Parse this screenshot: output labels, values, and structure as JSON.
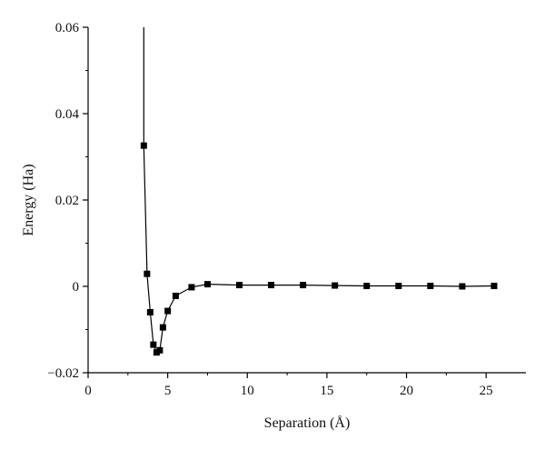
{
  "chart_data": {
    "type": "line",
    "title": "",
    "xlabel": "Separation (Å)",
    "ylabel": "Energy (Ha)",
    "xlim": [
      0,
      27.5
    ],
    "ylim": [
      -0.02,
      0.06
    ],
    "xticks": [
      0,
      5,
      10,
      15,
      20,
      25
    ],
    "yticks": [
      -0.02,
      0,
      0.02,
      0.04,
      0.06
    ],
    "ytick_labels": [
      "−0.02",
      "0",
      "0.02",
      "0.04",
      "0.06"
    ],
    "xtick_labels": [
      "0",
      "5",
      "10",
      "15",
      "20",
      "25"
    ],
    "grid": false,
    "legend": "none",
    "line_top_x": 3.5,
    "series": [
      {
        "marker": "square",
        "color": "#000000",
        "points": [
          {
            "x": 3.5,
            "y": 0.0326
          },
          {
            "x": 3.7,
            "y": 0.0029
          },
          {
            "x": 3.9,
            "y": -0.006
          },
          {
            "x": 4.1,
            "y": -0.0135
          },
          {
            "x": 4.3,
            "y": -0.0153
          },
          {
            "x": 4.5,
            "y": -0.0148
          },
          {
            "x": 4.7,
            "y": -0.0095
          },
          {
            "x": 5.0,
            "y": -0.0057
          },
          {
            "x": 5.5,
            "y": -0.0022
          },
          {
            "x": 6.5,
            "y": -0.0002
          },
          {
            "x": 7.5,
            "y": 0.0005
          },
          {
            "x": 9.5,
            "y": 0.0003
          },
          {
            "x": 11.5,
            "y": 0.0003
          },
          {
            "x": 13.5,
            "y": 0.0003
          },
          {
            "x": 15.5,
            "y": 0.0002
          },
          {
            "x": 17.5,
            "y": 0.0001
          },
          {
            "x": 19.5,
            "y": 0.0001
          },
          {
            "x": 21.5,
            "y": 0.0001
          },
          {
            "x": 23.5,
            "y": 0.0
          },
          {
            "x": 25.5,
            "y": 0.0001
          }
        ]
      }
    ]
  }
}
